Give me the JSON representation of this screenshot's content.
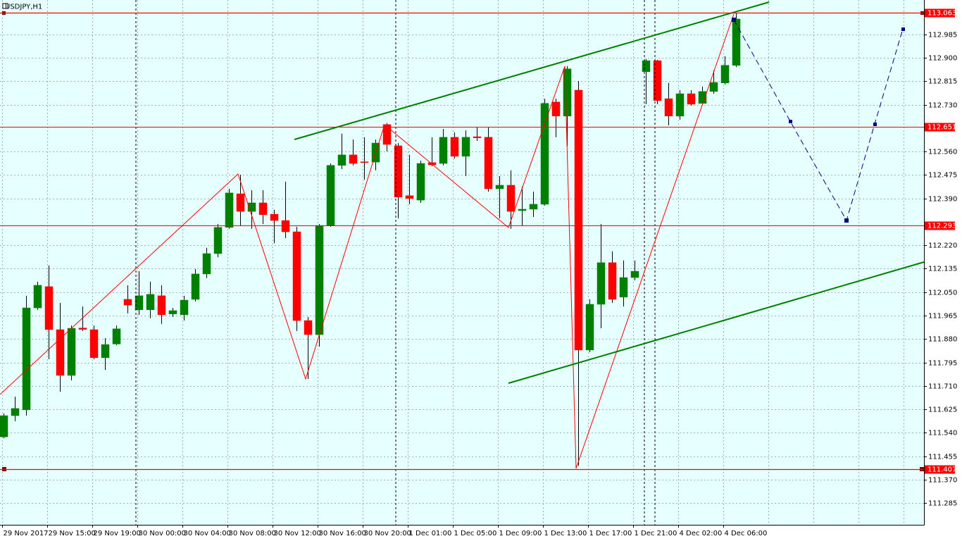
{
  "chart_data": {
    "type": "candlestick",
    "title": "USDJPY,H1",
    "background": "#e6ffff",
    "up_color": "#008000",
    "down_color": "#ff0000",
    "wick_color": "#000000",
    "grid": true,
    "categories": [
      "29 Nov 2017",
      null,
      null,
      null,
      "29 Nov 15:00",
      null,
      null,
      null,
      "29 Nov 19:00",
      null,
      null,
      null,
      "30 Nov 00:00",
      null,
      null,
      null,
      "30 Nov 04:00",
      null,
      null,
      null,
      "30 Nov 08:00",
      null,
      null,
      null,
      "30 Nov 12:00",
      null,
      null,
      null,
      "30 Nov 16:00",
      null,
      null,
      null,
      "30 Nov 20:00",
      null,
      null,
      null,
      "1 Dec 01:00",
      null,
      null,
      null,
      "1 Dec 05:00",
      null,
      null,
      null,
      "1 Dec 09:00",
      null,
      null,
      null,
      "1 Dec 13:00",
      null,
      null,
      null,
      "1 Dec 17:00",
      null,
      null,
      null,
      "1 Dec 21:00",
      null,
      null,
      null,
      "4 Dec 02:00",
      null,
      null,
      null,
      "4 Dec 06:00",
      null
    ],
    "open": [
      111.525,
      111.602,
      111.623,
      111.993,
      112.07,
      111.914,
      111.748,
      111.92,
      111.914,
      111.812,
      111.862,
      112.024,
      111.986,
      111.986,
      112.037,
      111.971,
      111.968,
      112.024,
      112.116,
      112.19,
      112.285,
      112.407,
      112.343,
      112.374,
      112.333,
      112.31,
      112.269,
      111.947,
      111.896,
      112.292,
      112.51,
      112.548,
      112.523,
      112.522,
      112.658,
      112.581,
      112.4,
      112.384,
      112.52,
      112.517,
      112.612,
      112.543,
      112.614,
      112.612,
      112.425,
      112.438,
      112.346,
      112.351,
      112.369,
      112.74,
      112.689,
      112.783,
      111.84,
      112.006,
      112.157,
      112.032,
      112.103,
      112.85,
      112.89,
      112.752,
      112.689,
      112.77,
      112.735,
      112.778,
      112.809,
      112.873
    ],
    "high": [
      111.61,
      111.671,
      112.037,
      112.088,
      112.147,
      112.011,
      111.929,
      111.998,
      111.929,
      111.883,
      111.929,
      112.075,
      112.126,
      112.088,
      112.075,
      111.993,
      112.037,
      112.134,
      112.211,
      112.297,
      112.425,
      112.476,
      112.42,
      112.42,
      112.349,
      112.451,
      112.287,
      111.96,
      112.297,
      112.517,
      112.625,
      112.604,
      112.612,
      112.604,
      112.663,
      112.591,
      112.548,
      112.527,
      112.612,
      112.642,
      112.63,
      112.637,
      112.65,
      112.65,
      112.471,
      112.492,
      112.433,
      112.415,
      112.752,
      112.752,
      112.87,
      112.816,
      112.024,
      112.297,
      112.198,
      112.165,
      112.165,
      112.896,
      112.893,
      112.809,
      112.783,
      112.783,
      112.796,
      112.855,
      112.906,
      113.063
    ],
    "low": [
      111.52,
      111.582,
      111.602,
      111.986,
      111.807,
      111.689,
      111.73,
      111.909,
      111.807,
      111.768,
      111.858,
      111.973,
      111.968,
      111.955,
      111.935,
      111.96,
      111.947,
      112.016,
      112.101,
      112.177,
      112.28,
      112.292,
      112.28,
      112.297,
      112.228,
      112.246,
      111.909,
      111.735,
      111.853,
      112.287,
      112.497,
      112.51,
      112.458,
      112.492,
      112.561,
      112.318,
      112.369,
      112.374,
      112.507,
      112.51,
      112.535,
      112.471,
      112.599,
      112.415,
      112.318,
      112.28,
      112.292,
      112.323,
      112.364,
      112.612,
      112.579,
      111.42,
      111.832,
      111.919,
      112.011,
      111.998,
      112.093,
      112.732,
      112.732,
      112.655,
      112.676,
      112.727,
      112.732,
      112.77,
      112.804,
      112.867
    ],
    "close": [
      111.602,
      111.628,
      111.993,
      112.075,
      111.914,
      111.748,
      111.919,
      111.915,
      111.812,
      111.86,
      111.917,
      112.003,
      112.037,
      112.042,
      111.968,
      111.983,
      112.021,
      112.116,
      112.19,
      112.285,
      112.41,
      112.343,
      112.374,
      112.331,
      112.31,
      112.269,
      111.947,
      111.896,
      112.292,
      112.51,
      112.548,
      112.517,
      112.52,
      112.591,
      112.586,
      112.395,
      112.39,
      112.517,
      112.512,
      112.612,
      112.543,
      112.612,
      112.61,
      112.425,
      112.438,
      112.343,
      112.351,
      112.369,
      112.735,
      112.689,
      112.86,
      111.84,
      112.006,
      112.157,
      112.024,
      112.103,
      112.126,
      112.89,
      112.745,
      112.689,
      112.77,
      112.732,
      112.778,
      112.811,
      112.873,
      113.041
    ],
    "price_levels": [
      113.063,
      112.651,
      112.293,
      111.407
    ],
    "level_color": "#ff0000",
    "ylim": [
      111.206,
      113.11
    ],
    "yticks": [
      112.985,
      {
        "value": 112.9,
        "label": "112.900"
      },
      112.815,
      {
        "value": 112.73,
        "label": "112.730"
      },
      {
        "value": 112.56,
        "label": "112.560"
      },
      112.475,
      {
        "value": 112.39,
        "label": "112.390"
      },
      {
        "value": 112.22,
        "label": "112.220"
      },
      112.135,
      {
        "value": 112.05,
        "label": "112.050"
      },
      111.965,
      {
        "value": 111.88,
        "label": "111.880"
      },
      111.795,
      {
        "value": 111.71,
        "label": "111.710"
      },
      111.625,
      {
        "value": 111.54,
        "label": "111.540"
      },
      111.455,
      {
        "value": 111.37,
        "label": "111.370"
      },
      111.285
    ]
  }
}
